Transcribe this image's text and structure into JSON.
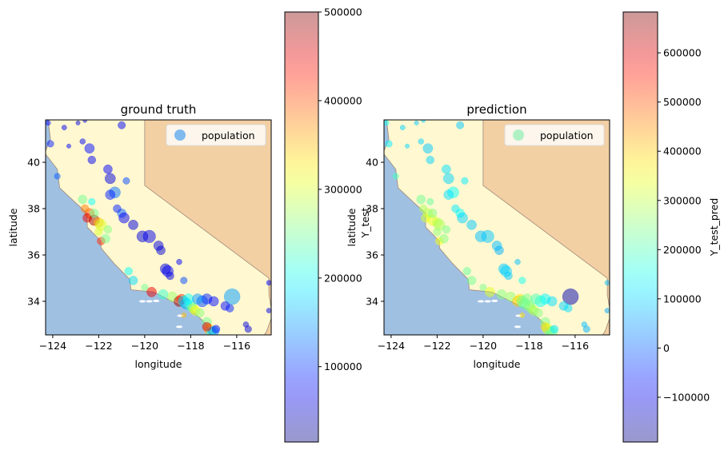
{
  "chart_data": [
    {
      "type": "scatter",
      "title": "ground truth",
      "xlabel": "longitude",
      "ylabel": "latitude",
      "extra_ylabel": "",
      "xlim": [
        -124.31,
        -114.5
      ],
      "ylim": [
        32.55,
        41.83
      ],
      "xticks": [
        -124,
        -122,
        -120,
        -118,
        -116
      ],
      "xticklabels": [
        "−124",
        "−122",
        "−120",
        "−118",
        "−116"
      ],
      "yticks": [
        34,
        36,
        38,
        40
      ],
      "yticklabels": [
        "34",
        "36",
        "38",
        "40"
      ],
      "legend": {
        "label": "population",
        "location": "upper right",
        "marker_color": "#4aa3f0"
      },
      "colorbar": {
        "cmap": "jet",
        "alpha": 0.4,
        "range": [
          14999,
          500001
        ],
        "ticks": [
          100000,
          200000,
          300000,
          400000,
          500000
        ],
        "ticklabels": [
          "100000",
          "200000",
          "300000",
          "400000",
          "500000"
        ],
        "label": ""
      },
      "value_key": "truth"
    },
    {
      "type": "scatter",
      "title": "prediction",
      "xlabel": "longitude",
      "ylabel": "latitude",
      "extra_ylabel": "Y_test",
      "xlim": [
        -124.31,
        -114.5
      ],
      "ylim": [
        32.55,
        41.83
      ],
      "xticks": [
        -124,
        -122,
        -120,
        -118,
        -116
      ],
      "xticklabels": [
        "−124",
        "−122",
        "−120",
        "−118",
        "−116"
      ],
      "yticks": [
        34,
        36,
        38,
        40
      ],
      "yticklabels": [
        "34",
        "36",
        "38",
        "40"
      ],
      "legend": {
        "label": "population",
        "location": "upper right",
        "marker_color": "#8ff0b0"
      },
      "colorbar": {
        "cmap": "jet",
        "alpha": 0.4,
        "range": [
          -191000,
          683000
        ],
        "ticks": [
          -100000,
          0,
          100000,
          200000,
          300000,
          400000,
          500000,
          600000
        ],
        "ticklabels": [
          "−100000",
          "0",
          "100000",
          "200000",
          "300000",
          "400000",
          "500000",
          "600000"
        ],
        "label": "Y_test_pred"
      },
      "value_key": "pred"
    }
  ],
  "points_columns": [
    "longitude",
    "latitude",
    "population",
    "truth",
    "pred"
  ],
  "points": [
    [
      -124.1,
      40.8,
      1500,
      90000,
      120000
    ],
    [
      -124.2,
      41.7,
      800,
      80000,
      150000
    ],
    [
      -123.8,
      39.4,
      1200,
      120000,
      190000
    ],
    [
      -123.3,
      40.7,
      600,
      70000,
      100000
    ],
    [
      -122.4,
      40.6,
      3000,
      80000,
      90000
    ],
    [
      -122.3,
      40.1,
      2000,
      70000,
      100000
    ],
    [
      -121.6,
      39.7,
      2500,
      75000,
      110000
    ],
    [
      -121.5,
      39.3,
      3500,
      60000,
      100000
    ],
    [
      -121.3,
      38.7,
      4000,
      130000,
      140000
    ],
    [
      -121.5,
      38.6,
      3000,
      90000,
      110000
    ],
    [
      -120.8,
      39.2,
      1500,
      110000,
      120000
    ],
    [
      -121.0,
      37.8,
      2500,
      120000,
      140000
    ],
    [
      -120.9,
      37.6,
      3500,
      70000,
      100000
    ],
    [
      -121.2,
      38.0,
      2000,
      90000,
      120000
    ],
    [
      -120.5,
      37.3,
      3000,
      60000,
      90000
    ],
    [
      -120.1,
      36.8,
      4000,
      60000,
      80000
    ],
    [
      -119.8,
      36.8,
      5000,
      65000,
      90000
    ],
    [
      -119.4,
      36.4,
      3000,
      60000,
      80000
    ],
    [
      -119.3,
      36.2,
      2500,
      55000,
      70000
    ],
    [
      -119.1,
      35.4,
      3500,
      60000,
      90000
    ],
    [
      -119.0,
      35.3,
      4000,
      70000,
      100000
    ],
    [
      -118.9,
      35.1,
      2000,
      60000,
      90000
    ],
    [
      -118.5,
      35.7,
      1000,
      70000,
      80000
    ],
    [
      -118.3,
      34.9,
      1500,
      110000,
      150000
    ],
    [
      -117.3,
      34.1,
      3500,
      90000,
      130000
    ],
    [
      -117.5,
      34.0,
      4000,
      110000,
      150000
    ],
    [
      -117.0,
      34.0,
      3000,
      80000,
      110000
    ],
    [
      -116.2,
      34.2,
      8000,
      150000,
      -150000
    ],
    [
      -116.5,
      33.8,
      2500,
      80000,
      100000
    ],
    [
      -116.3,
      33.7,
      2000,
      90000,
      110000
    ],
    [
      -115.5,
      32.8,
      1500,
      60000,
      70000
    ],
    [
      -115.6,
      33.0,
      1000,
      60000,
      80000
    ],
    [
      -114.6,
      33.6,
      800,
      60000,
      60000
    ],
    [
      -114.6,
      34.8,
      800,
      70000,
      80000
    ],
    [
      -122.4,
      37.8,
      3000,
      400000,
      300000
    ],
    [
      -122.5,
      37.6,
      2500,
      450000,
      320000
    ],
    [
      -122.2,
      37.5,
      3500,
      480000,
      340000
    ],
    [
      -122.0,
      37.4,
      3000,
      350000,
      300000
    ],
    [
      -121.9,
      37.3,
      4000,
      300000,
      280000
    ],
    [
      -122.2,
      37.8,
      2500,
      250000,
      250000
    ],
    [
      -122.6,
      38.0,
      2000,
      380000,
      280000
    ],
    [
      -122.7,
      38.4,
      2500,
      250000,
      230000
    ],
    [
      -122.3,
      38.3,
      1500,
      200000,
      220000
    ],
    [
      -121.9,
      36.6,
      2000,
      420000,
      350000
    ],
    [
      -121.7,
      36.7,
      2500,
      250000,
      250000
    ],
    [
      -122.0,
      37.0,
      2000,
      300000,
      260000
    ],
    [
      -121.6,
      37.1,
      2000,
      260000,
      240000
    ],
    [
      -120.7,
      35.3,
      2000,
      200000,
      220000
    ],
    [
      -120.5,
      34.9,
      2500,
      180000,
      230000
    ],
    [
      -120.0,
      34.6,
      1500,
      250000,
      240000
    ],
    [
      -119.7,
      34.4,
      3000,
      450000,
      330000
    ],
    [
      -119.2,
      34.3,
      3000,
      220000,
      250000
    ],
    [
      -118.8,
      34.2,
      3000,
      270000,
      260000
    ],
    [
      -118.5,
      34.0,
      3500,
      480000,
      400000
    ],
    [
      -118.4,
      34.1,
      3000,
      420000,
      380000
    ],
    [
      -118.3,
      34.0,
      4000,
      180000,
      230000
    ],
    [
      -118.2,
      33.9,
      4000,
      160000,
      220000
    ],
    [
      -118.0,
      33.8,
      3500,
      220000,
      250000
    ],
    [
      -117.9,
      33.7,
      3000,
      280000,
      260000
    ],
    [
      -118.1,
      34.1,
      3500,
      200000,
      240000
    ],
    [
      -117.8,
      33.6,
      3000,
      320000,
      290000
    ],
    [
      -117.7,
      34.1,
      3500,
      150000,
      200000
    ],
    [
      -118.3,
      33.4,
      800,
      350000,
      380000
    ],
    [
      -117.6,
      33.5,
      2500,
      260000,
      250000
    ],
    [
      -117.3,
      33.1,
      3000,
      250000,
      240000
    ],
    [
      -117.2,
      32.8,
      3500,
      350000,
      320000
    ],
    [
      -117.1,
      32.7,
      3000,
      200000,
      230000
    ],
    [
      -117.0,
      32.7,
      3500,
      150000,
      220000
    ],
    [
      -117.3,
      32.9,
      2500,
      450000,
      380000
    ],
    [
      -116.9,
      32.8,
      2000,
      80000,
      120000
    ],
    [
      -123.5,
      41.5,
      800,
      70000,
      100000
    ],
    [
      -122.9,
      41.7,
      600,
      60000,
      90000
    ],
    [
      -122.6,
      41.8,
      500,
      60000,
      100000
    ],
    [
      -121.0,
      41.6,
      1800,
      70000,
      90000
    ],
    [
      -122.7,
      40.9,
      1000,
      70000,
      100000
    ]
  ],
  "colors": {
    "ocean": "#a0c0e2",
    "california": "#fff8d0",
    "neighbors": "#f2d0a4",
    "border": "#a08878"
  }
}
